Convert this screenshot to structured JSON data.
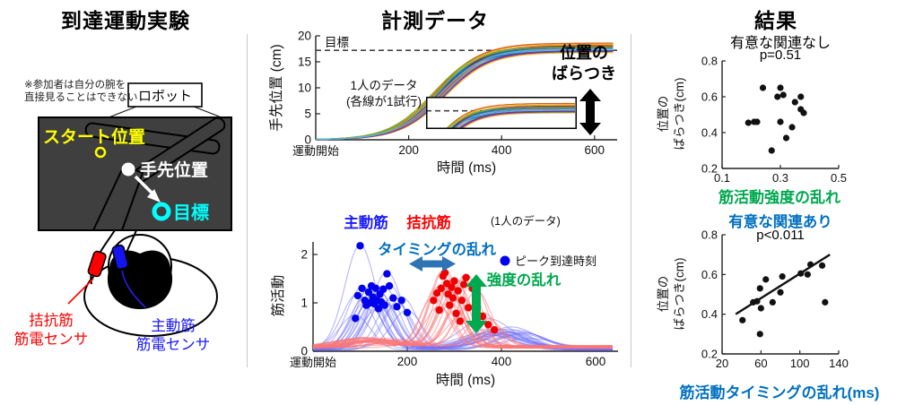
{
  "left_panel": {
    "title": "到達運動実験",
    "note": [
      "※参加者は自分の腕を",
      "直接見ることはできない"
    ],
    "robot_label": "ロボット",
    "start_label": "スタート位置",
    "hand_label": "手先位置",
    "target_label": "目標",
    "antagonist_sensor": [
      "拮抗筋",
      "筋電センサ"
    ],
    "agonist_sensor": [
      "主動筋",
      "筋電センサ"
    ],
    "colors": {
      "start": "#FFFF00",
      "target": "#00FFFF",
      "antagonist": "#FF0000",
      "agonist": "#1A1AFF",
      "screen": "#3F3F3F"
    }
  },
  "middle_panel": {
    "title": "計測データ",
    "variability_label": [
      "位置の",
      "ばらつき"
    ]
  },
  "right_panel": {
    "title": "結果"
  },
  "chart_data": [
    {
      "id": "hand_position",
      "type": "line",
      "xlabel": "時間 (ms)",
      "ylabel": "手先位置 (cm)",
      "x_origin_label": "運動開始",
      "xticks": [
        200,
        400,
        600
      ],
      "yticks": [
        0,
        5,
        10,
        15,
        20
      ],
      "xlim": [
        0,
        640
      ],
      "ylim": [
        0,
        20
      ],
      "target_value": 17.2,
      "target_label": "目標",
      "annotation": [
        "1人のデータ",
        "(各線が1試行)"
      ],
      "palette": [
        "#0072BD",
        "#D95319",
        "#EDB120",
        "#7E2F8E",
        "#77AC30",
        "#4DBEEE",
        "#A2142F"
      ],
      "trials": [
        {
          "plateau": 17.8,
          "t0": 262
        },
        {
          "plateau": 17.2,
          "t0": 271
        },
        {
          "plateau": 18.3,
          "t0": 255
        },
        {
          "plateau": 16.9,
          "t0": 276
        },
        {
          "plateau": 17.5,
          "t0": 268
        },
        {
          "plateau": 18.0,
          "t0": 258
        },
        {
          "plateau": 17.1,
          "t0": 273
        },
        {
          "plateau": 17.7,
          "t0": 266
        },
        {
          "plateau": 18.6,
          "t0": 260
        },
        {
          "plateau": 16.8,
          "t0": 279
        },
        {
          "plateau": 17.4,
          "t0": 264
        },
        {
          "plateau": 17.9,
          "t0": 252
        },
        {
          "plateau": 17.3,
          "t0": 274
        },
        {
          "plateau": 18.1,
          "t0": 269
        },
        {
          "plateau": 17.0,
          "t0": 257
        },
        {
          "plateau": 17.6,
          "t0": 271
        },
        {
          "plateau": 18.4,
          "t0": 263
        },
        {
          "plateau": 17.1,
          "t0": 277
        },
        {
          "plateau": 17.9,
          "t0": 259
        },
        {
          "plateau": 17.5,
          "t0": 267
        }
      ],
      "inset": {
        "xlim": [
          255,
          660
        ],
        "ylim": [
          14.0,
          19.6
        ],
        "target_value": 17.2
      }
    },
    {
      "id": "muscle_activity",
      "type": "line+scatter",
      "xlabel": "時間 (ms)",
      "ylabel": "筋活動",
      "x_origin_label": "運動開始",
      "xticks": [
        200,
        400,
        600
      ],
      "yticks": [
        0,
        1,
        2
      ],
      "xlim": [
        0,
        640
      ],
      "ylim": [
        0,
        2.3
      ],
      "agonist_label": "主動筋",
      "antagonist_label": "拮抗筋",
      "note": "(1人のデータ)",
      "legend_label": "ピーク到達時刻",
      "timing_label": "タイミングの乱れ",
      "intensity_label": "強度の乱れ",
      "colors": {
        "agonist_text": "#1A1AFF",
        "antagonist_text": "#FF0000",
        "timing": "#2E74B5",
        "intensity": "#00A94F",
        "agonist_curve": "rgba(110,110,250,0.5)",
        "antagonist_curve": "rgba(252,118,118,0.55)",
        "agonist_dot": "#0000EE",
        "antagonist_dot": "#EE0000"
      },
      "agonist_peaks": [
        [
          90,
          0.68
        ],
        [
          95,
          1.15
        ],
        [
          100,
          2.18
        ],
        [
          104,
          1.3
        ],
        [
          110,
          1.05
        ],
        [
          113,
          0.95
        ],
        [
          118,
          1.22
        ],
        [
          121,
          1.0
        ],
        [
          124,
          1.35
        ],
        [
          127,
          1.12
        ],
        [
          130,
          0.98
        ],
        [
          133,
          1.3
        ],
        [
          136,
          1.05
        ],
        [
          139,
          0.88
        ],
        [
          142,
          1.18
        ],
        [
          145,
          1.02
        ],
        [
          149,
          1.28
        ],
        [
          152,
          0.95
        ],
        [
          157,
          1.6
        ],
        [
          162,
          1.35
        ],
        [
          170,
          1.1
        ],
        [
          178,
          0.92
        ],
        [
          188,
          1.05
        ],
        [
          200,
          0.8
        ]
      ],
      "antagonist_peaks": [
        [
          256,
          1.05
        ],
        [
          263,
          1.2
        ],
        [
          268,
          0.85
        ],
        [
          272,
          1.3
        ],
        [
          276,
          1.55
        ],
        [
          280,
          1.62
        ],
        [
          284,
          1.4
        ],
        [
          287,
          1.18
        ],
        [
          290,
          0.95
        ],
        [
          294,
          1.32
        ],
        [
          297,
          1.1
        ],
        [
          300,
          1.45
        ],
        [
          304,
          0.78
        ],
        [
          308,
          1.25
        ],
        [
          312,
          0.62
        ],
        [
          316,
          1.05
        ],
        [
          320,
          1.38
        ],
        [
          325,
          1.52
        ],
        [
          330,
          0.9
        ],
        [
          338,
          1.3
        ],
        [
          348,
          1.18
        ],
        [
          360,
          0.72
        ],
        [
          372,
          0.55
        ],
        [
          385,
          0.44
        ]
      ]
    },
    {
      "id": "strength_scatter",
      "type": "scatter",
      "subtitle": "有意な関連なし",
      "p_label": "p=0.51",
      "xlabel": "筋活動強度の乱れ",
      "ylabel": [
        "位置の",
        "ばらつき(cm)"
      ],
      "xticks": [
        0.1,
        0.3,
        0.5
      ],
      "yticks": [
        0.2,
        0.4,
        0.6,
        0.8
      ],
      "xlim": [
        0.1,
        0.5
      ],
      "ylim": [
        0.2,
        0.8
      ],
      "points": [
        [
          0.24,
          0.65
        ],
        [
          0.3,
          0.65
        ],
        [
          0.29,
          0.6
        ],
        [
          0.31,
          0.61
        ],
        [
          0.35,
          0.57
        ],
        [
          0.37,
          0.6
        ],
        [
          0.37,
          0.53
        ],
        [
          0.38,
          0.51
        ],
        [
          0.19,
          0.455
        ],
        [
          0.21,
          0.46
        ],
        [
          0.22,
          0.46
        ],
        [
          0.3,
          0.46
        ],
        [
          0.34,
          0.43
        ],
        [
          0.32,
          0.37
        ],
        [
          0.27,
          0.3
        ]
      ]
    },
    {
      "id": "timing_scatter",
      "type": "scatter",
      "subtitle": "有意な関連あり",
      "p_label": "p<0.011",
      "xlabel": "筋活動タイミングの乱れ(ms)",
      "ylabel": [
        "位置の",
        "ばらつき(cm)"
      ],
      "xticks": [
        20,
        60,
        100,
        140
      ],
      "yticks": [
        0.2,
        0.4,
        0.6,
        0.8
      ],
      "xlim": [
        20,
        140
      ],
      "ylim": [
        0.2,
        0.8
      ],
      "points": [
        [
          41,
          0.37
        ],
        [
          52,
          0.46
        ],
        [
          56,
          0.465
        ],
        [
          59,
          0.53
        ],
        [
          60,
          0.43
        ],
        [
          59,
          0.3
        ],
        [
          65,
          0.575
        ],
        [
          72,
          0.46
        ],
        [
          80,
          0.51
        ],
        [
          82,
          0.59
        ],
        [
          101,
          0.605
        ],
        [
          108,
          0.6
        ],
        [
          111,
          0.65
        ],
        [
          123,
          0.645
        ],
        [
          126,
          0.46
        ]
      ],
      "fit_line": {
        "x1": 34,
        "y1": 0.4,
        "x2": 131,
        "y2": 0.7
      }
    }
  ]
}
